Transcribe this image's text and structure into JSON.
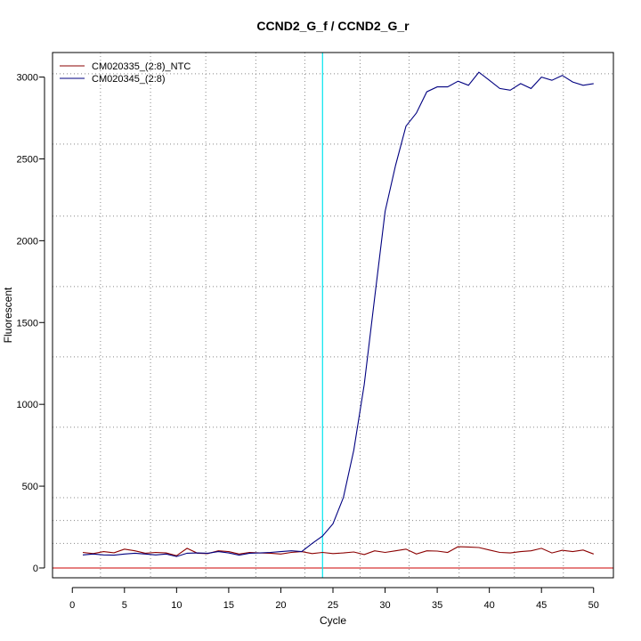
{
  "chart_data": {
    "type": "line",
    "title": "CCND2_G_f / CCND2_G_r",
    "xlabel": "Cycle",
    "ylabel": "Fluorescent",
    "xlim": [
      -1.9,
      51.9
    ],
    "ylim": [
      -60,
      3150
    ],
    "x_ticks": [
      0,
      5,
      10,
      15,
      20,
      25,
      30,
      35,
      40,
      45,
      50
    ],
    "y_ticks": [
      0,
      500,
      1000,
      1500,
      2000,
      2500,
      3000
    ],
    "x_grid": [
      2.7,
      7.5,
      12.8,
      17.6,
      22.3,
      27.6,
      32.3,
      37.1,
      42.4,
      47.1
    ],
    "y_grid": [
      150,
      290,
      430,
      860,
      1290,
      1720,
      2150,
      2590,
      3020
    ],
    "grid": true,
    "legend_position": "top-left",
    "threshold": {
      "cycle": 24,
      "color": "#00e5ee"
    },
    "baseline": {
      "value": 0,
      "color": "#cc0000"
    },
    "x": [
      1,
      2,
      3,
      4,
      5,
      6,
      7,
      8,
      9,
      10,
      11,
      12,
      13,
      14,
      15,
      16,
      17,
      18,
      19,
      20,
      21,
      22,
      23,
      24,
      25,
      26,
      27,
      28,
      29,
      30,
      31,
      32,
      33,
      34,
      35,
      36,
      37,
      38,
      39,
      40,
      41,
      42,
      43,
      44,
      45,
      46,
      47,
      48,
      49,
      50
    ],
    "series": [
      {
        "name": "CM020335_(2:8)_NTC",
        "color": "#8b0000",
        "values": [
          95,
          88,
          100,
          93,
          115,
          105,
          90,
          95,
          92,
          75,
          120,
          90,
          88,
          105,
          100,
          85,
          95,
          92,
          90,
          85,
          95,
          100,
          88,
          95,
          88,
          92,
          98,
          82,
          105,
          95,
          105,
          115,
          85,
          105,
          103,
          95,
          130,
          128,
          125,
          110,
          95,
          92,
          100,
          105,
          120,
          92,
          108,
          100,
          110,
          85
        ]
      },
      {
        "name": "CM020345_(2:8)",
        "color": "#000080",
        "values": [
          80,
          85,
          80,
          78,
          85,
          90,
          85,
          80,
          85,
          70,
          90,
          92,
          90,
          100,
          92,
          78,
          90,
          92,
          95,
          100,
          105,
          100,
          150,
          195,
          270,
          430,
          720,
          1120,
          1650,
          2180,
          2460,
          2700,
          2780,
          2910,
          2940,
          2940,
          2975,
          2950,
          3030,
          2980,
          2930,
          2920,
          2960,
          2930,
          3000,
          2980,
          3010,
          2970,
          2950,
          2960
        ]
      }
    ]
  }
}
